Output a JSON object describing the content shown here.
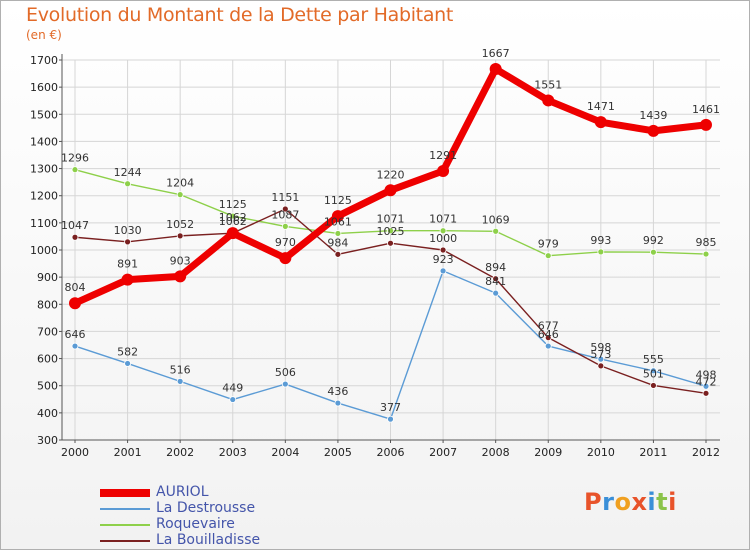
{
  "title": "Evolution du Montant de la Dette par Habitant",
  "unit": "(en €)",
  "logo": {
    "text": "Proxiti",
    "colors": [
      "#e8532a",
      "#3a8fd8",
      "#f0a020",
      "#e8532a",
      "#3a8fd8",
      "#8bc34a",
      "#e8532a"
    ]
  },
  "chart_data": {
    "type": "line",
    "x": [
      "2000",
      "2001",
      "2002",
      "2003",
      "2004",
      "2005",
      "2006",
      "2007",
      "2008",
      "2009",
      "2010",
      "2011",
      "2012"
    ],
    "ylim": [
      300,
      1700
    ],
    "yticks": [
      300,
      400,
      500,
      600,
      700,
      800,
      900,
      1000,
      1100,
      1200,
      1300,
      1400,
      1500,
      1600,
      1700
    ],
    "grid": true,
    "legend_position": "bottom-left",
    "series": [
      {
        "name": "AURIOL",
        "color": "#ee0000",
        "values": [
          804,
          891,
          903,
          1062,
          970,
          1125,
          1220,
          1291,
          1667,
          1551,
          1471,
          1439,
          1461
        ]
      },
      {
        "name": "La Destrousse",
        "color": "#5b9bd5",
        "values": [
          646,
          582,
          516,
          449,
          506,
          436,
          377,
          923,
          841,
          646,
          598,
          555,
          498
        ]
      },
      {
        "name": "Roquevaire",
        "color": "#8ed04a",
        "values": [
          1296,
          1244,
          1204,
          1125,
          1087,
          1061,
          1071,
          1071,
          1069,
          979,
          993,
          992,
          985
        ]
      },
      {
        "name": "La Bouilladisse",
        "color": "#7a2020",
        "values": [
          1047,
          1030,
          1052,
          1062,
          1151,
          984,
          1025,
          1000,
          894,
          677,
          573,
          501,
          472
        ]
      }
    ]
  }
}
